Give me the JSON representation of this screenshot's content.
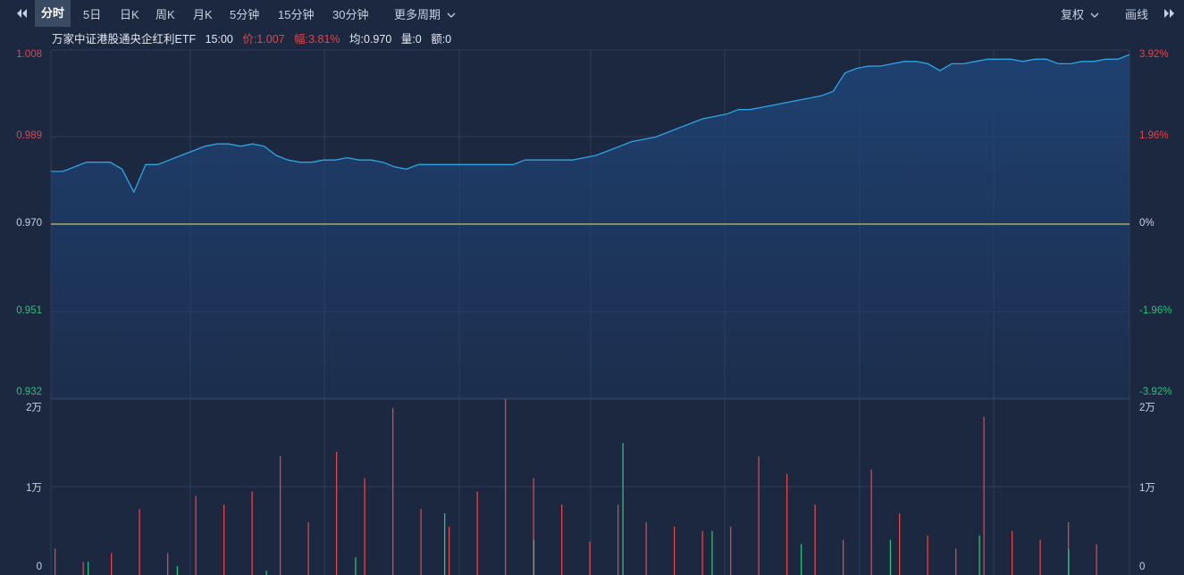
{
  "toolbar": {
    "tabs": [
      "分时",
      "5日",
      "日K",
      "周K",
      "月K",
      "5分钟",
      "15分钟",
      "30分钟"
    ],
    "active_tab": "分时",
    "more_periods": "更多周期",
    "adjust": "复权",
    "draw": "画线",
    "icons": [
      "double-left-arrow-icon",
      "chevron-down-icon",
      "double-right-arrow-icon"
    ]
  },
  "info": {
    "name": "万家中证港股通央企红利ETF",
    "time": "15:00",
    "price": "价:1.007",
    "change": "幅:3.81%",
    "avg": "均:0.970",
    "volume": "量:0",
    "amount": "额:0"
  },
  "colors": {
    "background": "#1c2740",
    "grid": "#2f3d58",
    "price_line": "#2aa6e6",
    "area_fill": "#1e4273",
    "avg_line": "#b3a36a",
    "up": "#e0454b",
    "down": "#2cc07a"
  },
  "chart_data": [
    {
      "type": "area",
      "y_ticks_left": [
        "1.008",
        "0.989",
        "0.970",
        "0.951",
        "0.932"
      ],
      "y_ticks_right": [
        "3.92%",
        "1.96%",
        "0%",
        "-1.96%",
        "-3.92%"
      ],
      "ylim": [
        0.932,
        1.008
      ],
      "base_price": 0.97,
      "grid": true,
      "series": [
        {
          "values": [
            0.9815,
            0.9815,
            0.9825,
            0.9835,
            0.9835,
            0.9835,
            0.982,
            0.977,
            0.983,
            0.983,
            0.984,
            0.985,
            0.986,
            0.987,
            0.9875,
            0.9875,
            0.987,
            0.9875,
            0.987,
            0.985,
            0.984,
            0.9835,
            0.9835,
            0.984,
            0.984,
            0.9845,
            0.984,
            0.984,
            0.9835,
            0.9825,
            0.982,
            0.983,
            0.983,
            0.983,
            0.983,
            0.983,
            0.983,
            0.983,
            0.983,
            0.983,
            0.984,
            0.984,
            0.984,
            0.984,
            0.984,
            0.9845,
            0.985,
            0.986,
            0.987,
            0.988,
            0.9885,
            0.989,
            0.99,
            0.991,
            0.992,
            0.993,
            0.9935,
            0.994,
            0.995,
            0.995,
            0.9955,
            0.996,
            0.9965,
            0.997,
            0.9975,
            0.998,
            0.999,
            1.003,
            1.004,
            1.0045,
            1.0045,
            1.005,
            1.0055,
            1.0055,
            1.005,
            1.0035,
            1.005,
            1.005,
            1.0055,
            1.006,
            1.006,
            1.006,
            1.0055,
            1.006,
            1.006,
            1.005,
            1.005,
            1.0055,
            1.0055,
            1.006,
            1.006,
            1.007
          ]
        }
      ],
      "volume": {
        "y_ticks_left": [
          "2万",
          "1万",
          "0"
        ],
        "y_ticks_right": [
          "2万",
          "1万",
          "0"
        ],
        "ylim": [
          0,
          20000
        ],
        "up_values": [
          3000,
          1500,
          2500,
          7500,
          2500,
          9000,
          8000,
          9500,
          13500,
          6000,
          14000,
          11000,
          19000,
          7500,
          5500,
          9500,
          20000,
          11000,
          8000,
          3800,
          8000,
          6000,
          5500,
          5000,
          5500,
          13500,
          11500,
          8000,
          4000,
          12000,
          7000,
          4500,
          3000,
          18000,
          5000,
          4000,
          6000,
          3500
        ],
        "down_values": [
          1500,
          1000,
          500,
          2000,
          7000,
          4000,
          15000,
          5000,
          3500,
          4000,
          4500,
          3000
        ]
      }
    }
  ]
}
